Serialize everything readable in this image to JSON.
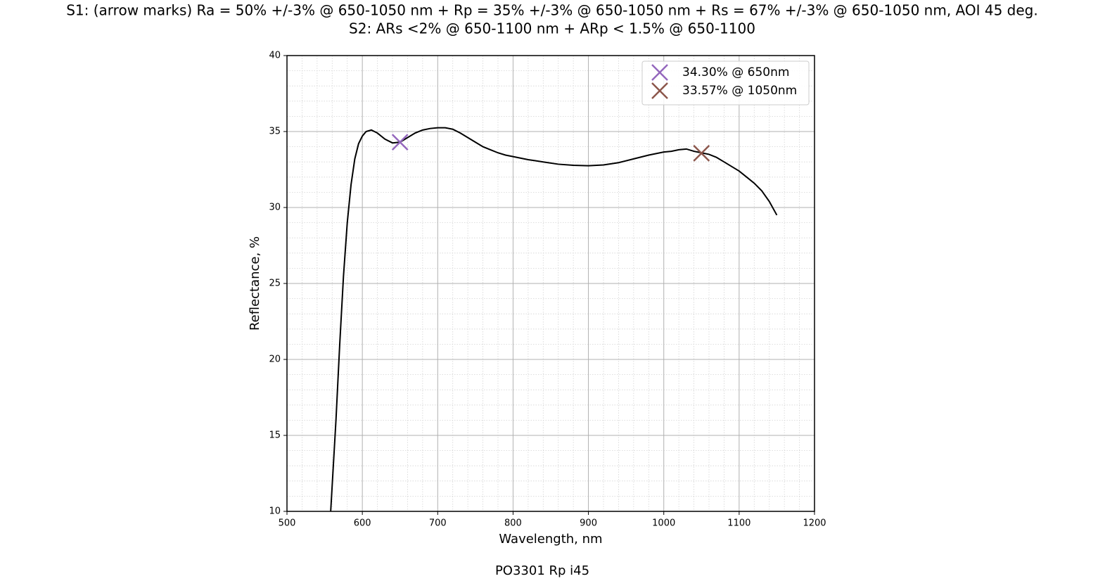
{
  "chart_data": {
    "type": "line",
    "title": "S1: (arrow marks)  Ra = 50% +/-3% @ 650-1050 nm + Rp = 35% +/-3% @ 650-1050 nm + Rs = 67% +/-3% @ 650-1050 nm, AOI 45 deg.",
    "subtitle": "S2: ARs <2% @ 650-1100 nm + ARp < 1.5% @ 650-1100",
    "xlabel": "Wavelength, nm",
    "ylabel": "Reflectance, %",
    "caption": "PO3301 Rp i45",
    "xlim": [
      500,
      1200
    ],
    "ylim": [
      10,
      40
    ],
    "xticks": [
      500,
      600,
      700,
      800,
      900,
      1000,
      1100,
      1200
    ],
    "yticks": [
      10,
      15,
      20,
      25,
      30,
      35,
      40
    ],
    "xminorticks": [
      520,
      540,
      560,
      580,
      620,
      640,
      660,
      680,
      720,
      740,
      760,
      780,
      820,
      840,
      860,
      880,
      920,
      940,
      960,
      980,
      1020,
      1040,
      1060,
      1080,
      1120,
      1140,
      1160,
      1180
    ],
    "yminorticks": [
      11,
      12,
      13,
      14,
      16,
      17,
      18,
      19,
      21,
      22,
      23,
      24,
      26,
      27,
      28,
      29,
      31,
      32,
      33,
      34,
      36,
      37,
      38,
      39
    ],
    "grid": true,
    "legend": "upper right",
    "series": [
      {
        "type": "line",
        "color": "#000000",
        "x": [
          558,
          565,
          570,
          575,
          580,
          585,
          590,
          595,
          600,
          605,
          612,
          620,
          630,
          640,
          650,
          660,
          670,
          680,
          690,
          700,
          710,
          720,
          730,
          740,
          750,
          760,
          770,
          780,
          790,
          800,
          820,
          840,
          860,
          880,
          900,
          920,
          940,
          960,
          980,
          1000,
          1010,
          1020,
          1030,
          1040,
          1050,
          1060,
          1070,
          1080,
          1090,
          1100,
          1110,
          1120,
          1130,
          1140,
          1150
        ],
        "values": [
          10,
          16,
          21,
          25.5,
          29,
          31.5,
          33.2,
          34.2,
          34.7,
          35,
          35.1,
          34.9,
          34.5,
          34.25,
          34.3,
          34.6,
          34.9,
          35.1,
          35.2,
          35.25,
          35.25,
          35.15,
          34.9,
          34.6,
          34.3,
          34,
          33.8,
          33.6,
          33.45,
          33.35,
          33.15,
          33,
          32.85,
          32.78,
          32.75,
          32.8,
          32.95,
          33.2,
          33.45,
          33.65,
          33.7,
          33.8,
          33.85,
          33.7,
          33.6,
          33.5,
          33.3,
          33,
          32.7,
          32.4,
          32,
          31.6,
          31.1,
          30.4,
          29.5
        ]
      },
      {
        "type": "scatter",
        "name": "34.30% @ 650nm",
        "color": "#9467bd",
        "x": [
          650
        ],
        "values": [
          34.3
        ]
      },
      {
        "type": "scatter",
        "name": "33.57% @ 1050nm",
        "color": "#8c564b",
        "x": [
          1050
        ],
        "values": [
          33.57
        ]
      }
    ]
  }
}
